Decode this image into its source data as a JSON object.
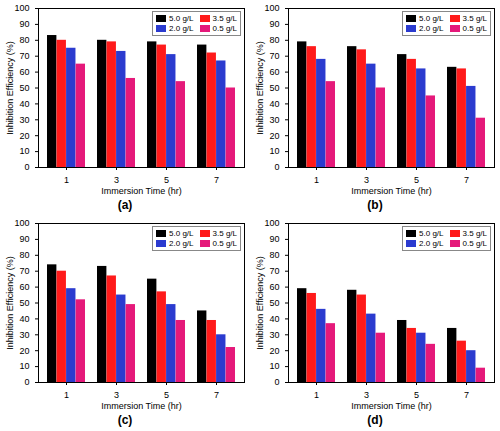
{
  "chart_data": [
    {
      "type": "bar",
      "title": "(a)",
      "x_label": "Immersion Time (hr)",
      "y_label": "Inhibition Efficiency (%)",
      "categories": [
        "1",
        "3",
        "5",
        "7"
      ],
      "series": [
        {
          "name": "5.0 g/L",
          "color": "#000000",
          "values": [
            83,
            80,
            79,
            77
          ]
        },
        {
          "name": "3.5 g/L",
          "color": "#ff1a1a",
          "values": [
            80,
            79,
            77,
            72
          ]
        },
        {
          "name": "2.0 g/L",
          "color": "#2b3bcf",
          "values": [
            75,
            73,
            71,
            67
          ]
        },
        {
          "name": "0.5 g/L",
          "color": "#e5197a",
          "values": [
            65,
            56,
            54,
            50
          ]
        }
      ],
      "ylim": [
        0,
        100
      ],
      "yticks": [
        0,
        10,
        20,
        30,
        40,
        50,
        60,
        70,
        80,
        90,
        100
      ],
      "legend": "top-right"
    },
    {
      "type": "bar",
      "title": "(b)",
      "x_label": "Immersion Time (hr)",
      "y_label": "Inhibition Efficiency (%)",
      "categories": [
        "1",
        "3",
        "5",
        "7"
      ],
      "series": [
        {
          "name": "5.0 g/L",
          "color": "#000000",
          "values": [
            79,
            76,
            71,
            63
          ]
        },
        {
          "name": "3.5 g/L",
          "color": "#ff1a1a",
          "values": [
            76,
            74,
            68,
            62
          ]
        },
        {
          "name": "2.0 g/L",
          "color": "#2b3bcf",
          "values": [
            68,
            65,
            62,
            51
          ]
        },
        {
          "name": "0.5 g/L",
          "color": "#e5197a",
          "values": [
            54,
            50,
            45,
            31
          ]
        }
      ],
      "ylim": [
        0,
        100
      ],
      "yticks": [
        0,
        10,
        20,
        30,
        40,
        50,
        60,
        70,
        80,
        90,
        100
      ],
      "legend": "top-right"
    },
    {
      "type": "bar",
      "title": "(c)",
      "x_label": "Immersion Time (hr)",
      "y_label": "Inhibition Efficiency (%)",
      "categories": [
        "1",
        "3",
        "5",
        "7"
      ],
      "series": [
        {
          "name": "5.0 g/L",
          "color": "#000000",
          "values": [
            74,
            73,
            65,
            45
          ]
        },
        {
          "name": "3.5 g/L",
          "color": "#ff1a1a",
          "values": [
            70,
            67,
            57,
            39
          ]
        },
        {
          "name": "2.0 g/L",
          "color": "#2b3bcf",
          "values": [
            59,
            55,
            49,
            30
          ]
        },
        {
          "name": "0.5 g/L",
          "color": "#e5197a",
          "values": [
            52,
            49,
            39,
            22
          ]
        }
      ],
      "ylim": [
        0,
        100
      ],
      "yticks": [
        0,
        10,
        20,
        30,
        40,
        50,
        60,
        70,
        80,
        90,
        100
      ],
      "legend": "top-right"
    },
    {
      "type": "bar",
      "title": "(d)",
      "x_label": "Immersion Time (hr)",
      "y_label": "Inhibition Efficiency (%)",
      "categories": [
        "1",
        "3",
        "5",
        "7"
      ],
      "series": [
        {
          "name": "5.0 g/L",
          "color": "#000000",
          "values": [
            59,
            58,
            39,
            34
          ]
        },
        {
          "name": "3.5 g/L",
          "color": "#ff1a1a",
          "values": [
            56,
            55,
            34,
            26
          ]
        },
        {
          "name": "2.0 g/L",
          "color": "#2b3bcf",
          "values": [
            46,
            43,
            31,
            20
          ]
        },
        {
          "name": "0.5 g/L",
          "color": "#e5197a",
          "values": [
            37,
            31,
            24,
            9
          ]
        }
      ],
      "ylim": [
        0,
        100
      ],
      "yticks": [
        0,
        10,
        20,
        30,
        40,
        50,
        60,
        70,
        80,
        90,
        100
      ],
      "legend": "top-right"
    }
  ]
}
